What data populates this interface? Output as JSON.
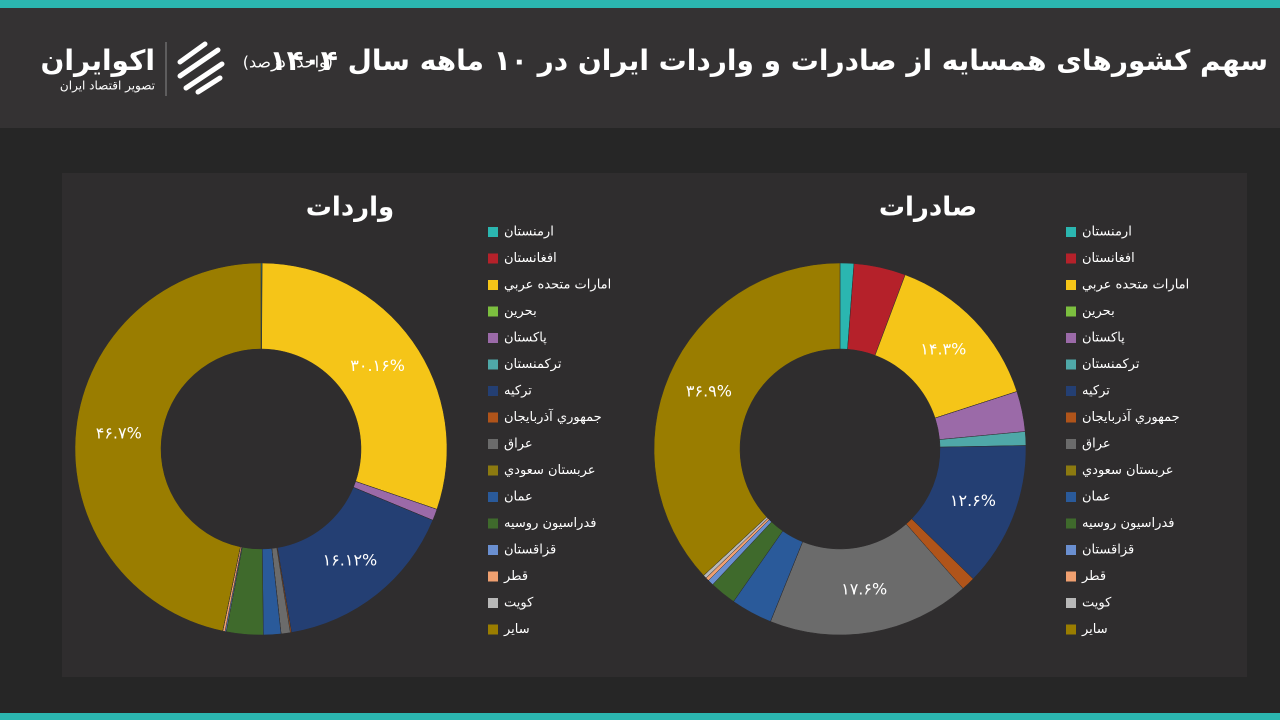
{
  "header": {
    "title": "سهم کشورهای همسایه از صادرات و واردات ایران در ۱۰ ماهه سال ۱۴۰۴",
    "unit": "(واحد: درصد)",
    "logo_name": "اکوایران",
    "logo_tagline": "تصویر اقتصاد ایران"
  },
  "chart_data": [
    {
      "type": "pie",
      "title": "واردات",
      "categories": [
        "ارمنستان",
        "افغانستان",
        "امارات متحده عربي",
        "بحرين",
        "پاکستان",
        "ترکمنستان",
        "ترکيه",
        "جمهوري آذربايجان",
        "عراق",
        "عربستان سعودي",
        "عمان",
        "فدراسيون روسيه",
        "قزاقستان",
        "قطر",
        "کويت",
        "ساير"
      ],
      "values": [
        0.1,
        0,
        30.16,
        0,
        1,
        0,
        16.12,
        0.1,
        0.8,
        0,
        1.52,
        3.2,
        0.1,
        0.2,
        0,
        46.7
      ],
      "value_labels": [
        null,
        null,
        "۳۰.۱۶%",
        null,
        null,
        null,
        "۱۶.۱۲%",
        null,
        null,
        null,
        null,
        null,
        null,
        null,
        null,
        "۴۶.۷%"
      ],
      "colors": [
        "#2bb6b0",
        "#b5212a",
        "#f5c518",
        "#7cbf3f",
        "#9b6aa8",
        "#4fa8a8",
        "#243f73",
        "#b0541a",
        "#6b6b6b",
        "#8c7a10",
        "#2a5a9a",
        "#3f6a2c",
        "#6a8fd0",
        "#f0a070",
        "#b8b8b8",
        "#9a7d00"
      ]
    },
    {
      "type": "pie",
      "title": "صادرات",
      "categories": [
        "ارمنستان",
        "افغانستان",
        "امارات متحده عربي",
        "بحرين",
        "پاکستان",
        "ترکمنستان",
        "ترکيه",
        "جمهوري آذربايجان",
        "عراق",
        "عربستان سعودي",
        "عمان",
        "فدراسيون روسيه",
        "قزاقستان",
        "قطر",
        "کويت",
        "ساير"
      ],
      "values": [
        1.2,
        4.5,
        14.3,
        0,
        3.5,
        1.2,
        12.6,
        1.2,
        17.6,
        0,
        3.6,
        2.3,
        0.5,
        0.3,
        0.3,
        36.9
      ],
      "value_labels": [
        null,
        null,
        "۱۴.۳%",
        null,
        null,
        null,
        "۱۲.۶%",
        null,
        "۱۷.۶%",
        null,
        null,
        null,
        null,
        null,
        null,
        "۳۶.۹%"
      ],
      "colors": [
        "#2bb6b0",
        "#b5212a",
        "#f5c518",
        "#7cbf3f",
        "#9b6aa8",
        "#4fa8a8",
        "#243f73",
        "#b0541a",
        "#6b6b6b",
        "#8c7a10",
        "#2a5a9a",
        "#3f6a2c",
        "#6a8fd0",
        "#f0a070",
        "#b8b8b8",
        "#9a7d00"
      ]
    }
  ]
}
